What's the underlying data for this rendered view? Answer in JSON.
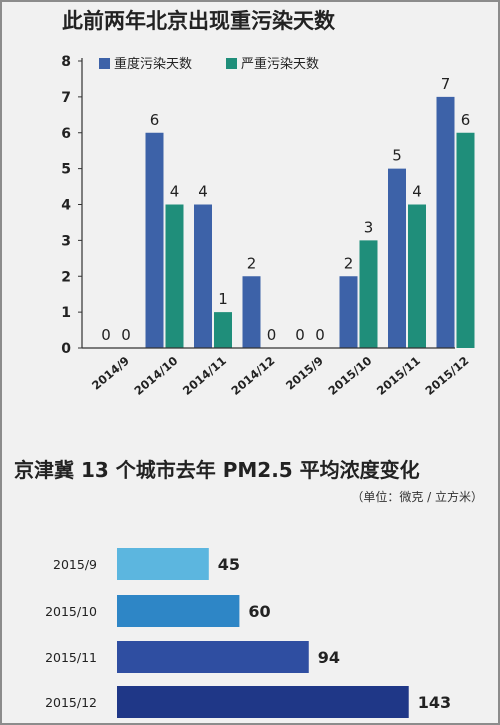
{
  "chart_data": [
    {
      "type": "bar",
      "title": "此前两年北京出现重污染天数",
      "categories": [
        "2014/9",
        "2014/10",
        "2014/11",
        "2014/12",
        "2015/9",
        "2015/10",
        "2015/11",
        "2015/12"
      ],
      "series": [
        {
          "name": "重度污染天数",
          "values": [
            0,
            6,
            4,
            2,
            0,
            2,
            5,
            7
          ]
        },
        {
          "name": "严重污染天数",
          "values": [
            0,
            4,
            1,
            0,
            0,
            3,
            4,
            6
          ]
        }
      ],
      "ylim": [
        0,
        8
      ],
      "yticks": [
        0,
        1,
        2,
        3,
        4,
        5,
        6,
        7,
        8
      ],
      "legend": "top-center",
      "grid": false
    },
    {
      "type": "bar",
      "orientation": "horizontal",
      "title": "京津冀 13 个城市去年 PM2.5 平均浓度变化",
      "unit_note": "（单位：微克 / 立方米）",
      "categories": [
        "2015/9",
        "2015/10",
        "2015/11",
        "2015/12"
      ],
      "values": [
        45,
        60,
        94,
        143
      ]
    }
  ],
  "colors": {
    "heavy": "#3d62a8",
    "severe": "#1f8e7a",
    "pm_bars": [
      "#5cb6df",
      "#2e86c6",
      "#2f4ea1",
      "#1f3787"
    ]
  }
}
